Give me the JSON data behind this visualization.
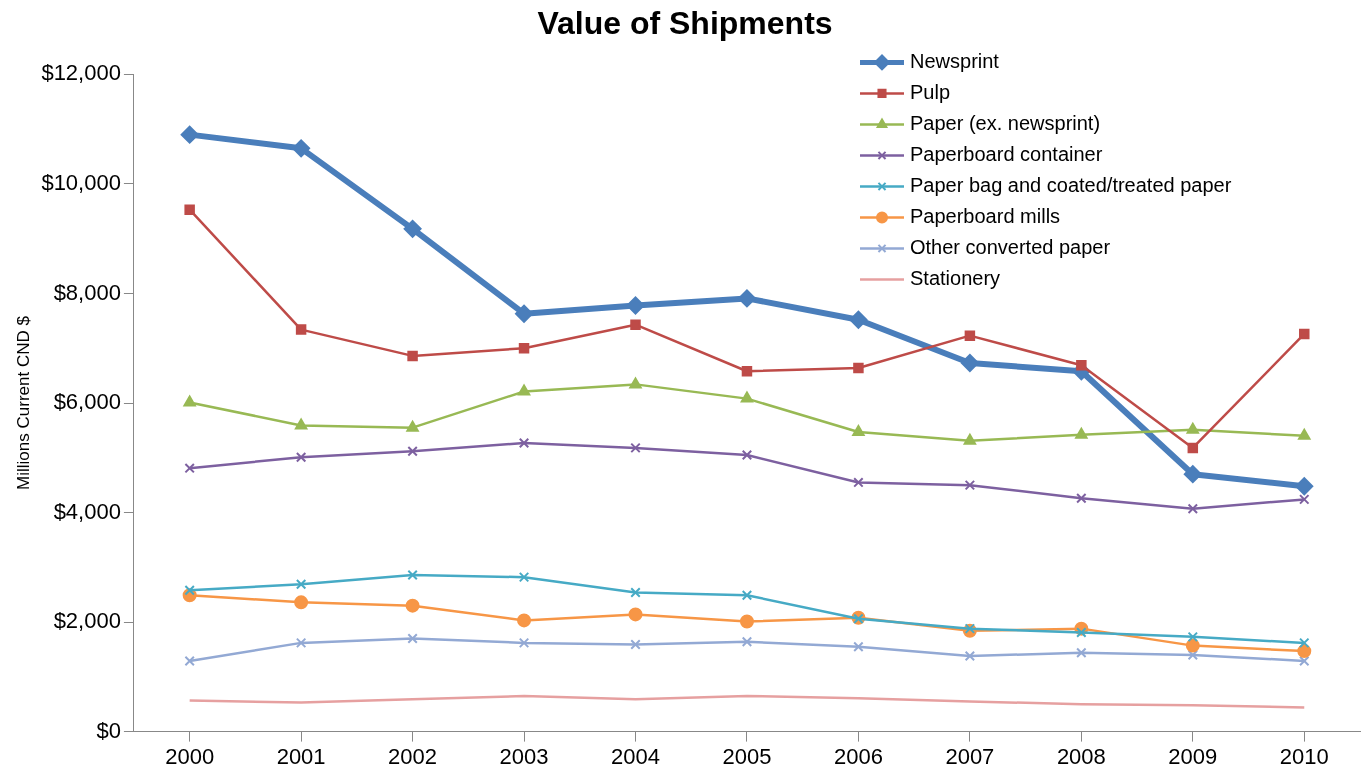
{
  "chart_data": {
    "type": "line",
    "title": "Value of Shipments",
    "ylabel": "Millions Current CND $",
    "categories": [
      "2000",
      "2001",
      "2002",
      "2003",
      "2004",
      "2005",
      "2006",
      "2007",
      "2008",
      "2009",
      "2010"
    ],
    "ylim": [
      0,
      12000
    ],
    "yticks": [
      {
        "value": 0,
        "label": "$0"
      },
      {
        "value": 2000,
        "label": "$2,000"
      },
      {
        "value": 4000,
        "label": "$4,000"
      },
      {
        "value": 6000,
        "label": "$6,000"
      },
      {
        "value": 8000,
        "label": "$8,000"
      },
      {
        "value": 10000,
        "label": "$10,000"
      },
      {
        "value": 12000,
        "label": "$12,000"
      }
    ],
    "grid": false,
    "legend": "top right",
    "line_style": "solid",
    "series": [
      {
        "name": "Newsprint",
        "color": "#4a7ebb",
        "marker": "diamond",
        "values": [
          10900,
          10650,
          9180,
          7630,
          7780,
          7910,
          7520,
          6730,
          6580,
          4700,
          4480
        ]
      },
      {
        "name": "Pulp",
        "color": "#be4b48",
        "marker": "square",
        "values": [
          9530,
          7340,
          6860,
          7000,
          7430,
          6580,
          6640,
          7230,
          6690,
          5180,
          7260
        ]
      },
      {
        "name": "Paper (ex. newsprint)",
        "color": "#98b954",
        "marker": "triangle",
        "values": [
          6010,
          5590,
          5550,
          6210,
          6340,
          6080,
          5470,
          5310,
          5420,
          5510,
          5400
        ]
      },
      {
        "name": "Paperboard container",
        "color": "#7d60a0",
        "marker": "cross",
        "values": [
          4810,
          5010,
          5120,
          5270,
          5180,
          5050,
          4550,
          4500,
          4260,
          4070,
          4240
        ]
      },
      {
        "name": "Paper bag and coated/treated paper",
        "color": "#46aac5",
        "marker": "cross",
        "values": [
          2580,
          2690,
          2860,
          2820,
          2540,
          2490,
          2060,
          1880,
          1810,
          1730,
          1620
        ]
      },
      {
        "name": "Paperboard mills",
        "color": "#f79646",
        "marker": "circle",
        "values": [
          2490,
          2360,
          2300,
          2030,
          2140,
          2010,
          2080,
          1840,
          1880,
          1570,
          1470
        ]
      },
      {
        "name": "Other converted paper",
        "color": "#93a9d4",
        "marker": "cross",
        "values": [
          1290,
          1620,
          1700,
          1620,
          1590,
          1640,
          1550,
          1380,
          1440,
          1400,
          1290
        ]
      },
      {
        "name": "Stationery",
        "color": "#e6a0a0",
        "marker": "none",
        "values": [
          570,
          530,
          590,
          650,
          590,
          650,
          610,
          550,
          500,
          480,
          440
        ]
      }
    ]
  }
}
